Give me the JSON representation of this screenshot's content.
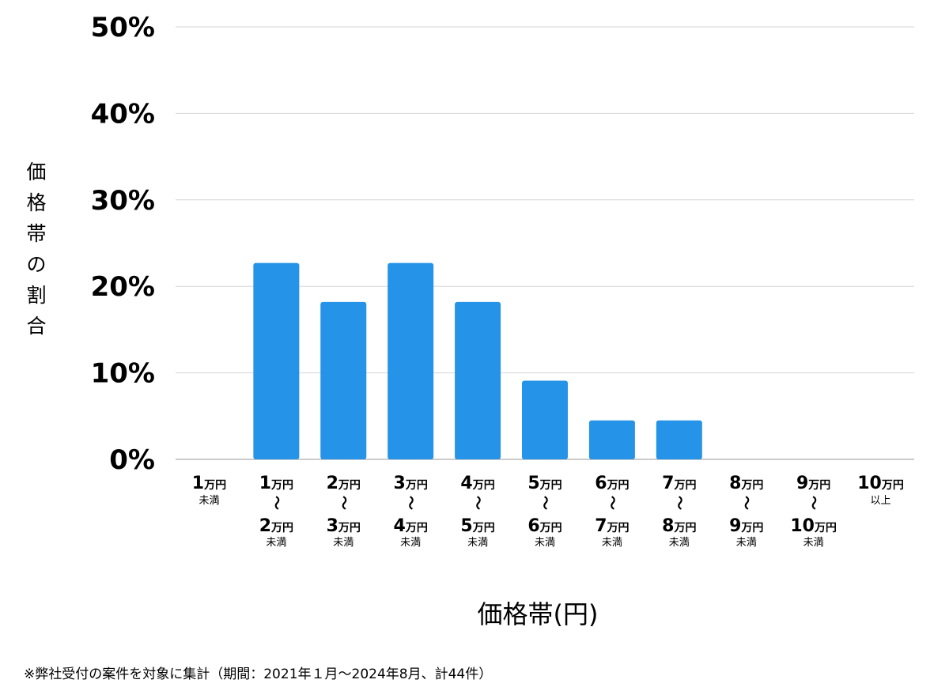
{
  "chart_data": {
    "type": "bar",
    "title": "",
    "xlabel": "価格帯(円)",
    "ylabel": "価格帯の割合",
    "ylim": [
      0,
      50
    ],
    "y_ticks": [
      "0%",
      "10%",
      "20%",
      "30%",
      "40%",
      "50%"
    ],
    "grid": true,
    "bar_color": "#2593e8",
    "categories": [
      "1万円未満",
      "1万円〜2万円未満",
      "2万円〜3万円未満",
      "3万円〜4万円未満",
      "4万円〜5万円未満",
      "5万円〜6万円未満",
      "6万円〜7万円未満",
      "7万円〜8万円未満",
      "8万円〜9万円未満",
      "9万円〜10万円未満",
      "10万円以上"
    ],
    "category_labels": [
      {
        "from": "1",
        "to": "",
        "suffix": "未満"
      },
      {
        "from": "1",
        "to": "2",
        "suffix": "未満"
      },
      {
        "from": "2",
        "to": "3",
        "suffix": "未満"
      },
      {
        "from": "3",
        "to": "4",
        "suffix": "未満"
      },
      {
        "from": "4",
        "to": "5",
        "suffix": "未満"
      },
      {
        "from": "5",
        "to": "6",
        "suffix": "未満"
      },
      {
        "from": "6",
        "to": "7",
        "suffix": "未満"
      },
      {
        "from": "7",
        "to": "8",
        "suffix": "未満"
      },
      {
        "from": "8",
        "to": "9",
        "suffix": "未満"
      },
      {
        "from": "9",
        "to": "10",
        "suffix": "未満"
      },
      {
        "from": "10",
        "to": "",
        "suffix": "以上"
      }
    ],
    "unit": "万円",
    "range_separator": "〜",
    "values": [
      0,
      22.7,
      18.2,
      22.7,
      18.2,
      9.1,
      4.5,
      4.5,
      0,
      0,
      0
    ]
  },
  "footnote": "※弊社受付の案件を対象に集計（期間：2021年１月〜2024年8月、計44件）"
}
